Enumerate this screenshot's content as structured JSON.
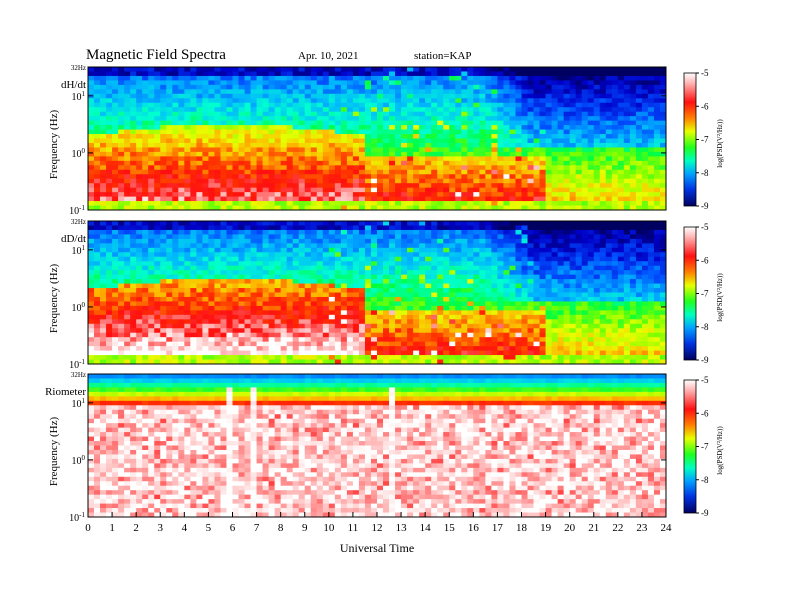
{
  "header": {
    "title": "Magnetic  Field  Spectra",
    "date": "Apr. 10, 2021",
    "station": "station=KAP"
  },
  "colors": {
    "scale": [
      "#000060",
      "#0000c8",
      "#0050ff",
      "#00b4ff",
      "#00ffd0",
      "#00ff40",
      "#7cff00",
      "#e8ff00",
      "#ffb000",
      "#ff3000",
      "#ff1010",
      "#ffb0b0",
      "#ffffff"
    ],
    "frame": "#000000",
    "background": "#ffffff"
  },
  "chart_data": {
    "type": "heatmap",
    "xlabel": "Universal Time",
    "x_ticks": [
      "0",
      "1",
      "2",
      "3",
      "4",
      "5",
      "6",
      "7",
      "8",
      "9",
      "10",
      "11",
      "12",
      "13",
      "14",
      "15",
      "16",
      "17",
      "18",
      "19",
      "20",
      "21",
      "22",
      "23",
      "24"
    ],
    "xlim": [
      0,
      24
    ],
    "panels": [
      {
        "label": "dH/dt",
        "ylabel": "Frequency  (Hz)",
        "top_label": "32Hz",
        "y_ticks": [
          {
            "base": "10",
            "exp": "1",
            "value": 10
          },
          {
            "base": "10",
            "exp": "0",
            "value": 1
          },
          {
            "base": "10",
            "exp": "-1",
            "value": 0.1
          }
        ],
        "ylim_hz": [
          0.1,
          32
        ],
        "y_scale": "log",
        "colorbar": {
          "label": "log(PSD(V²/Hz))",
          "ticks": [
            "-5",
            "-6",
            "-7",
            "-8",
            "-9"
          ],
          "range": [
            -9,
            -5
          ]
        },
        "shape": "activity"
      },
      {
        "label": "dD/dt",
        "ylabel": "Frequency  (Hz)",
        "top_label": "32Hz",
        "y_ticks": [
          {
            "base": "10",
            "exp": "1",
            "value": 10
          },
          {
            "base": "10",
            "exp": "0",
            "value": 1
          },
          {
            "base": "10",
            "exp": "-1",
            "value": 0.1
          }
        ],
        "ylim_hz": [
          0.1,
          32
        ],
        "y_scale": "log",
        "colorbar": {
          "label": "log(PSD(V²/Hz))",
          "ticks": [
            "-5",
            "-6",
            "-7",
            "-8",
            "-9"
          ],
          "range": [
            -9,
            -5
          ]
        },
        "shape": "activity"
      },
      {
        "label": "Riometer",
        "ylabel": "Frequency  (Hz)",
        "top_label": "32Hz",
        "y_ticks": [
          {
            "base": "10",
            "exp": "1",
            "value": 10
          },
          {
            "base": "10",
            "exp": "0",
            "value": 1
          },
          {
            "base": "10",
            "exp": "-1",
            "value": 0.1
          }
        ],
        "ylim_hz": [
          0.1,
          32
        ],
        "y_scale": "log",
        "colorbar": {
          "label": "log(PSD(V²/Hz))",
          "ticks": [
            "-5",
            "-6",
            "-7",
            "-8",
            "-9"
          ],
          "range": [
            -9,
            -5
          ]
        },
        "shape": "riometer",
        "spikes_ut": [
          5.8,
          6.8,
          12.7,
          13.0
        ]
      }
    ]
  }
}
